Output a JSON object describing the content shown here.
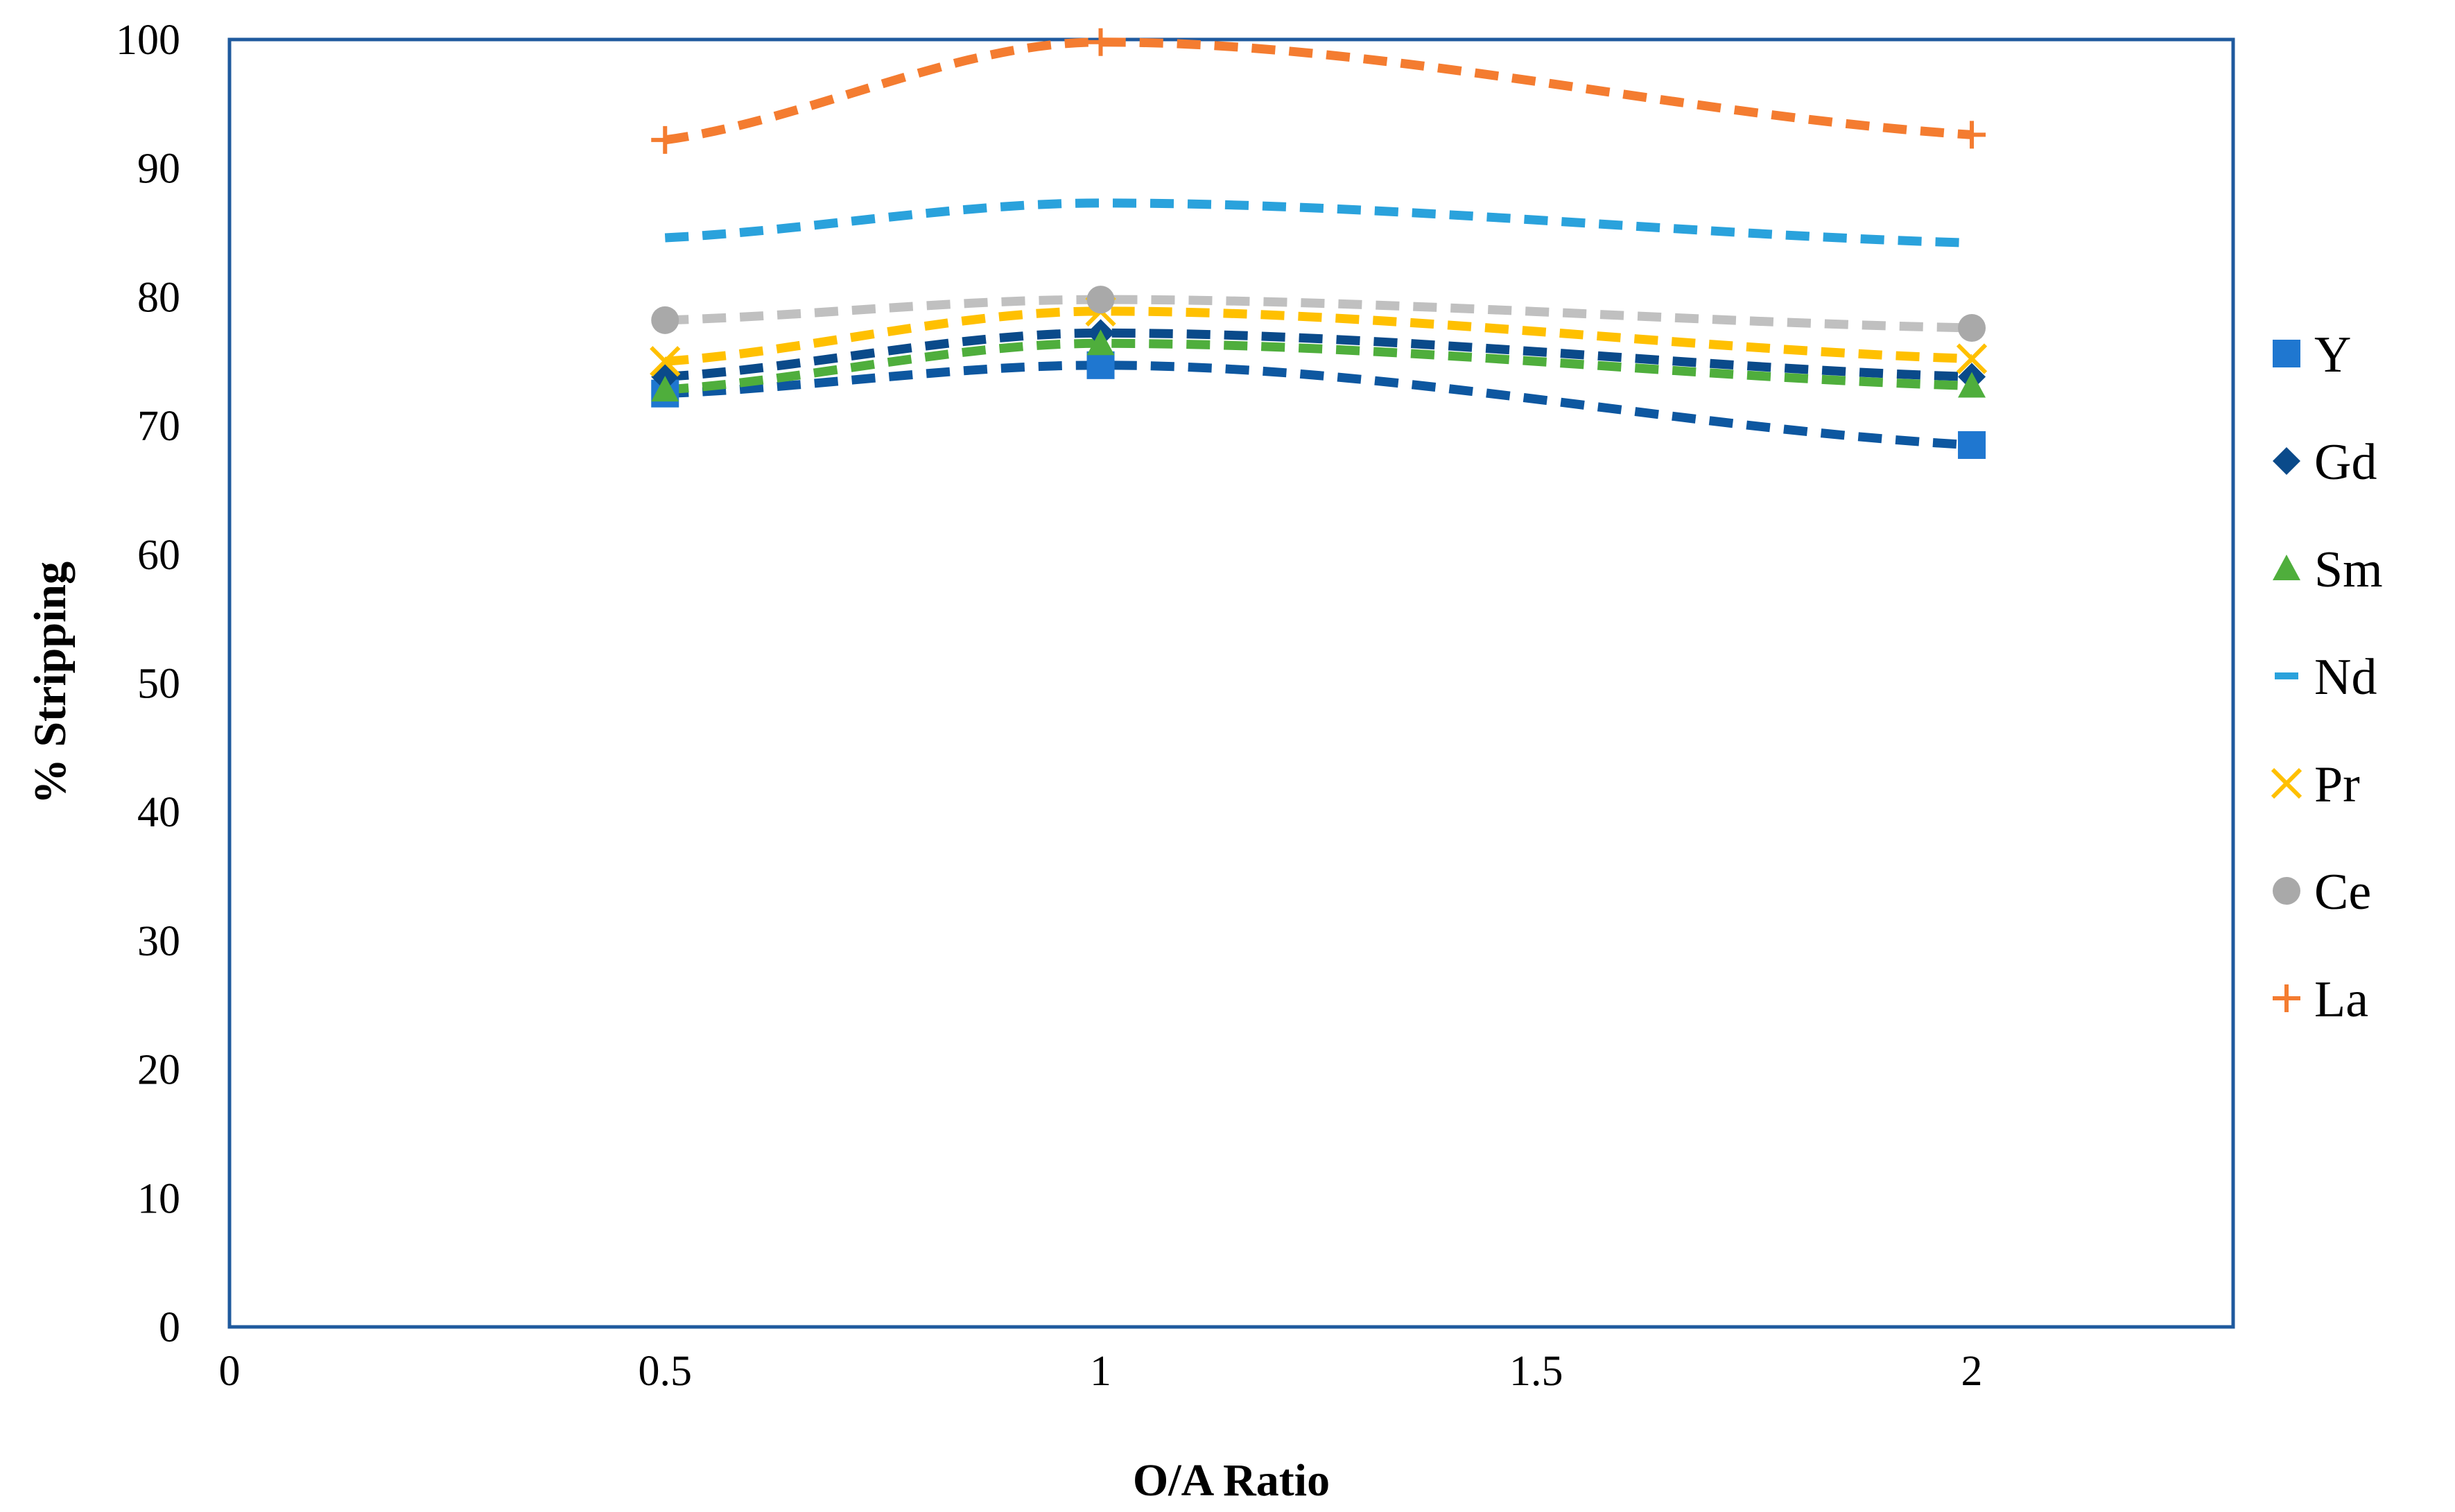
{
  "chart_data": {
    "type": "scatter",
    "title": "",
    "xlabel": "O/A Ratio",
    "ylabel": "% Stripping",
    "xlim": [
      0,
      2.3
    ],
    "ylim": [
      0,
      100
    ],
    "x_ticks": [
      "0",
      "0.5",
      "1",
      "1.5",
      "2"
    ],
    "y_ticks": [
      "0",
      "10",
      "20",
      "30",
      "40",
      "50",
      "60",
      "70",
      "80",
      "90",
      "100"
    ],
    "x": [
      0.5,
      1,
      2
    ],
    "legend_position": "right",
    "trendlines": "dashed smooth curves",
    "series": [
      {
        "name": "Y",
        "values": [
          72.5,
          74.7,
          68.5
        ],
        "marker": "square",
        "color": "#1f77d0",
        "trend_color": "#0d57a0"
      },
      {
        "name": "Gd",
        "values": [
          73.8,
          77.2,
          73.8
        ],
        "marker": "diamond",
        "color": "#0a4a8a",
        "trend_color": "#0a4a8a"
      },
      {
        "name": "Sm",
        "values": [
          72.8,
          76.4,
          73.1
        ],
        "marker": "triangle",
        "color": "#4fae3c",
        "trend_color": "#4fae3c"
      },
      {
        "name": "Nd",
        "values": [
          84.6,
          87.3,
          84.2
        ],
        "marker": "dash",
        "color": "#2aa2dc",
        "trend_color": "#2aa2dc"
      },
      {
        "name": "Pr",
        "values": [
          75.0,
          78.9,
          75.2
        ],
        "marker": "x",
        "color": "#ffc000",
        "trend_color": "#ffc000"
      },
      {
        "name": "Ce",
        "values": [
          78.2,
          79.8,
          77.6
        ],
        "marker": "circle",
        "color": "#a9a9a9",
        "trend_color": "#c0c0c0"
      },
      {
        "name": "La",
        "values": [
          92.2,
          99.8,
          92.6
        ],
        "marker": "plus",
        "color": "#f47c30",
        "trend_color": "#f47c30"
      }
    ]
  }
}
